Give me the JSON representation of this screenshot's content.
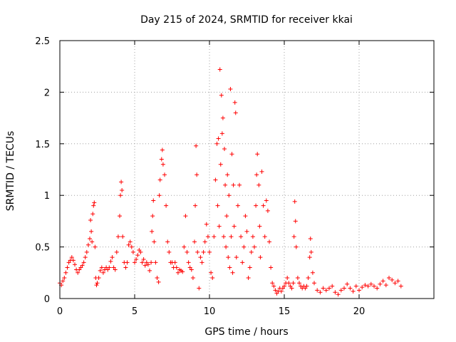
{
  "chart_data": {
    "type": "scatter",
    "title": "Day 215 of 2024, SRMTID for receiver kkai",
    "xlabel": "GPS time / hours",
    "ylabel": "SRMTID / TECUs",
    "xlim": [
      0,
      25
    ],
    "ylim": [
      0,
      2.5
    ],
    "xticks": [
      0,
      5,
      10,
      15,
      20
    ],
    "xtick_labels": [
      "0",
      "5",
      "10",
      "15",
      "20"
    ],
    "yticks": [
      0,
      0.5,
      1,
      1.5,
      2,
      2.5
    ],
    "ytick_labels": [
      "0",
      "0.5",
      "1",
      "1.5",
      "2",
      "2.5"
    ],
    "grid": true,
    "marker": "plus",
    "marker_color": "#ff0000",
    "series": [
      {
        "name": "SRMTID",
        "points": [
          [
            0.0,
            0.15
          ],
          [
            0.1,
            0.13
          ],
          [
            0.2,
            0.17
          ],
          [
            0.3,
            0.2
          ],
          [
            0.4,
            0.25
          ],
          [
            0.5,
            0.3
          ],
          [
            0.6,
            0.35
          ],
          [
            0.7,
            0.37
          ],
          [
            0.8,
            0.4
          ],
          [
            0.9,
            0.37
          ],
          [
            1.0,
            0.33
          ],
          [
            1.1,
            0.28
          ],
          [
            1.2,
            0.25
          ],
          [
            1.3,
            0.28
          ],
          [
            1.4,
            0.3
          ],
          [
            1.5,
            0.32
          ],
          [
            1.6,
            0.35
          ],
          [
            1.7,
            0.4
          ],
          [
            1.8,
            0.45
          ],
          [
            1.9,
            0.52
          ],
          [
            2.0,
            0.58
          ],
          [
            2.05,
            0.76
          ],
          [
            2.1,
            0.65
          ],
          [
            2.15,
            0.55
          ],
          [
            2.2,
            0.82
          ],
          [
            2.25,
            0.9
          ],
          [
            2.3,
            0.93
          ],
          [
            2.35,
            0.5
          ],
          [
            2.4,
            0.2
          ],
          [
            2.45,
            0.13
          ],
          [
            2.5,
            0.15
          ],
          [
            2.6,
            0.2
          ],
          [
            2.7,
            0.27
          ],
          [
            2.8,
            0.3
          ],
          [
            2.9,
            0.25
          ],
          [
            3.0,
            0.28
          ],
          [
            3.1,
            0.3
          ],
          [
            3.2,
            0.28
          ],
          [
            3.3,
            0.3
          ],
          [
            3.4,
            0.36
          ],
          [
            3.5,
            0.4
          ],
          [
            3.6,
            0.3
          ],
          [
            3.7,
            0.28
          ],
          [
            3.8,
            0.45
          ],
          [
            3.9,
            0.6
          ],
          [
            4.0,
            0.8
          ],
          [
            4.05,
            1.0
          ],
          [
            4.1,
            1.13
          ],
          [
            4.15,
            1.05
          ],
          [
            4.2,
            0.6
          ],
          [
            4.3,
            0.35
          ],
          [
            4.4,
            0.3
          ],
          [
            4.5,
            0.35
          ],
          [
            4.6,
            0.52
          ],
          [
            4.7,
            0.55
          ],
          [
            4.8,
            0.5
          ],
          [
            4.9,
            0.45
          ],
          [
            5.0,
            0.35
          ],
          [
            5.1,
            0.38
          ],
          [
            5.2,
            0.42
          ],
          [
            5.3,
            0.47
          ],
          [
            5.4,
            0.45
          ],
          [
            5.5,
            0.35
          ],
          [
            5.6,
            0.38
          ],
          [
            5.7,
            0.32
          ],
          [
            5.8,
            0.35
          ],
          [
            5.9,
            0.33
          ],
          [
            6.0,
            0.27
          ],
          [
            6.1,
            0.35
          ],
          [
            6.15,
            0.65
          ],
          [
            6.2,
            0.8
          ],
          [
            6.25,
            0.95
          ],
          [
            6.3,
            0.55
          ],
          [
            6.4,
            0.35
          ],
          [
            6.5,
            0.2
          ],
          [
            6.6,
            0.16
          ],
          [
            6.65,
            1.0
          ],
          [
            6.7,
            1.15
          ],
          [
            6.8,
            1.35
          ],
          [
            6.85,
            1.44
          ],
          [
            6.9,
            1.3
          ],
          [
            7.0,
            1.2
          ],
          [
            7.1,
            0.9
          ],
          [
            7.2,
            0.55
          ],
          [
            7.3,
            0.45
          ],
          [
            7.4,
            0.35
          ],
          [
            7.5,
            0.35
          ],
          [
            7.6,
            0.3
          ],
          [
            7.7,
            0.35
          ],
          [
            7.8,
            0.3
          ],
          [
            7.9,
            0.25
          ],
          [
            8.0,
            0.28
          ],
          [
            8.1,
            0.27
          ],
          [
            8.2,
            0.26
          ],
          [
            8.3,
            0.5
          ],
          [
            8.4,
            0.8
          ],
          [
            8.5,
            0.45
          ],
          [
            8.6,
            0.35
          ],
          [
            8.7,
            0.3
          ],
          [
            8.8,
            0.28
          ],
          [
            8.9,
            0.2
          ],
          [
            9.0,
            0.55
          ],
          [
            9.05,
            0.9
          ],
          [
            9.1,
            1.48
          ],
          [
            9.15,
            1.2
          ],
          [
            9.2,
            0.45
          ],
          [
            9.3,
            0.1
          ],
          [
            9.4,
            0.4
          ],
          [
            9.5,
            0.35
          ],
          [
            9.6,
            0.45
          ],
          [
            9.7,
            0.55
          ],
          [
            9.8,
            0.72
          ],
          [
            9.9,
            0.6
          ],
          [
            10.0,
            0.45
          ],
          [
            10.1,
            0.25
          ],
          [
            10.2,
            0.2
          ],
          [
            10.3,
            0.6
          ],
          [
            10.4,
            1.15
          ],
          [
            10.5,
            1.5
          ],
          [
            10.55,
            0.9
          ],
          [
            10.6,
            1.55
          ],
          [
            10.65,
            0.7
          ],
          [
            10.7,
            2.22
          ],
          [
            10.75,
            1.3
          ],
          [
            10.8,
            1.97
          ],
          [
            10.85,
            1.6
          ],
          [
            10.9,
            1.75
          ],
          [
            10.95,
            0.6
          ],
          [
            11.0,
            1.45
          ],
          [
            11.05,
            1.1
          ],
          [
            11.1,
            0.5
          ],
          [
            11.15,
            0.8
          ],
          [
            11.2,
            1.2
          ],
          [
            11.25,
            0.4
          ],
          [
            11.3,
            1.0
          ],
          [
            11.35,
            0.3
          ],
          [
            11.4,
            2.03
          ],
          [
            11.45,
            0.6
          ],
          [
            11.5,
            1.4
          ],
          [
            11.55,
            0.25
          ],
          [
            11.6,
            1.1
          ],
          [
            11.65,
            0.7
          ],
          [
            11.7,
            1.9
          ],
          [
            11.75,
            1.8
          ],
          [
            11.8,
            0.4
          ],
          [
            11.9,
            0.9
          ],
          [
            12.0,
            1.1
          ],
          [
            12.1,
            0.6
          ],
          [
            12.2,
            0.35
          ],
          [
            12.3,
            0.5
          ],
          [
            12.4,
            0.8
          ],
          [
            12.5,
            0.65
          ],
          [
            12.6,
            0.2
          ],
          [
            12.7,
            0.3
          ],
          [
            12.8,
            0.45
          ],
          [
            12.9,
            0.6
          ],
          [
            13.0,
            0.5
          ],
          [
            13.1,
            0.9
          ],
          [
            13.15,
            1.2
          ],
          [
            13.2,
            1.4
          ],
          [
            13.3,
            1.1
          ],
          [
            13.35,
            0.7
          ],
          [
            13.4,
            0.4
          ],
          [
            13.5,
            1.23
          ],
          [
            13.6,
            0.9
          ],
          [
            13.7,
            0.6
          ],
          [
            13.8,
            0.95
          ],
          [
            13.9,
            0.85
          ],
          [
            14.0,
            0.55
          ],
          [
            14.1,
            0.3
          ],
          [
            14.2,
            0.15
          ],
          [
            14.3,
            0.12
          ],
          [
            14.4,
            0.08
          ],
          [
            14.5,
            0.05
          ],
          [
            14.6,
            0.07
          ],
          [
            14.7,
            0.1
          ],
          [
            14.8,
            0.07
          ],
          [
            14.9,
            0.1
          ],
          [
            15.0,
            0.12
          ],
          [
            15.1,
            0.15
          ],
          [
            15.2,
            0.2
          ],
          [
            15.3,
            0.15
          ],
          [
            15.4,
            0.12
          ],
          [
            15.5,
            0.1
          ],
          [
            15.6,
            0.15
          ],
          [
            15.65,
            0.6
          ],
          [
            15.7,
            0.94
          ],
          [
            15.75,
            0.75
          ],
          [
            15.8,
            0.5
          ],
          [
            15.9,
            0.2
          ],
          [
            16.0,
            0.15
          ],
          [
            16.1,
            0.12
          ],
          [
            16.2,
            0.1
          ],
          [
            16.3,
            0.12
          ],
          [
            16.4,
            0.1
          ],
          [
            16.5,
            0.12
          ],
          [
            16.6,
            0.2
          ],
          [
            16.7,
            0.4
          ],
          [
            16.75,
            0.58
          ],
          [
            16.8,
            0.45
          ],
          [
            16.9,
            0.25
          ],
          [
            17.0,
            0.15
          ],
          [
            17.2,
            0.08
          ],
          [
            17.4,
            0.06
          ],
          [
            17.6,
            0.1
          ],
          [
            17.8,
            0.08
          ],
          [
            18.0,
            0.1
          ],
          [
            18.2,
            0.12
          ],
          [
            18.4,
            0.06
          ],
          [
            18.6,
            0.04
          ],
          [
            18.8,
            0.08
          ],
          [
            19.0,
            0.1
          ],
          [
            19.2,
            0.14
          ],
          [
            19.4,
            0.1
          ],
          [
            19.6,
            0.07
          ],
          [
            19.8,
            0.12
          ],
          [
            20.0,
            0.08
          ],
          [
            20.2,
            0.11
          ],
          [
            20.4,
            0.13
          ],
          [
            20.6,
            0.12
          ],
          [
            20.8,
            0.14
          ],
          [
            21.0,
            0.12
          ],
          [
            21.2,
            0.1
          ],
          [
            21.4,
            0.14
          ],
          [
            21.6,
            0.17
          ],
          [
            21.8,
            0.13
          ],
          [
            22.0,
            0.2
          ],
          [
            22.2,
            0.18
          ],
          [
            22.4,
            0.15
          ],
          [
            22.6,
            0.17
          ],
          [
            22.8,
            0.12
          ]
        ]
      }
    ]
  }
}
